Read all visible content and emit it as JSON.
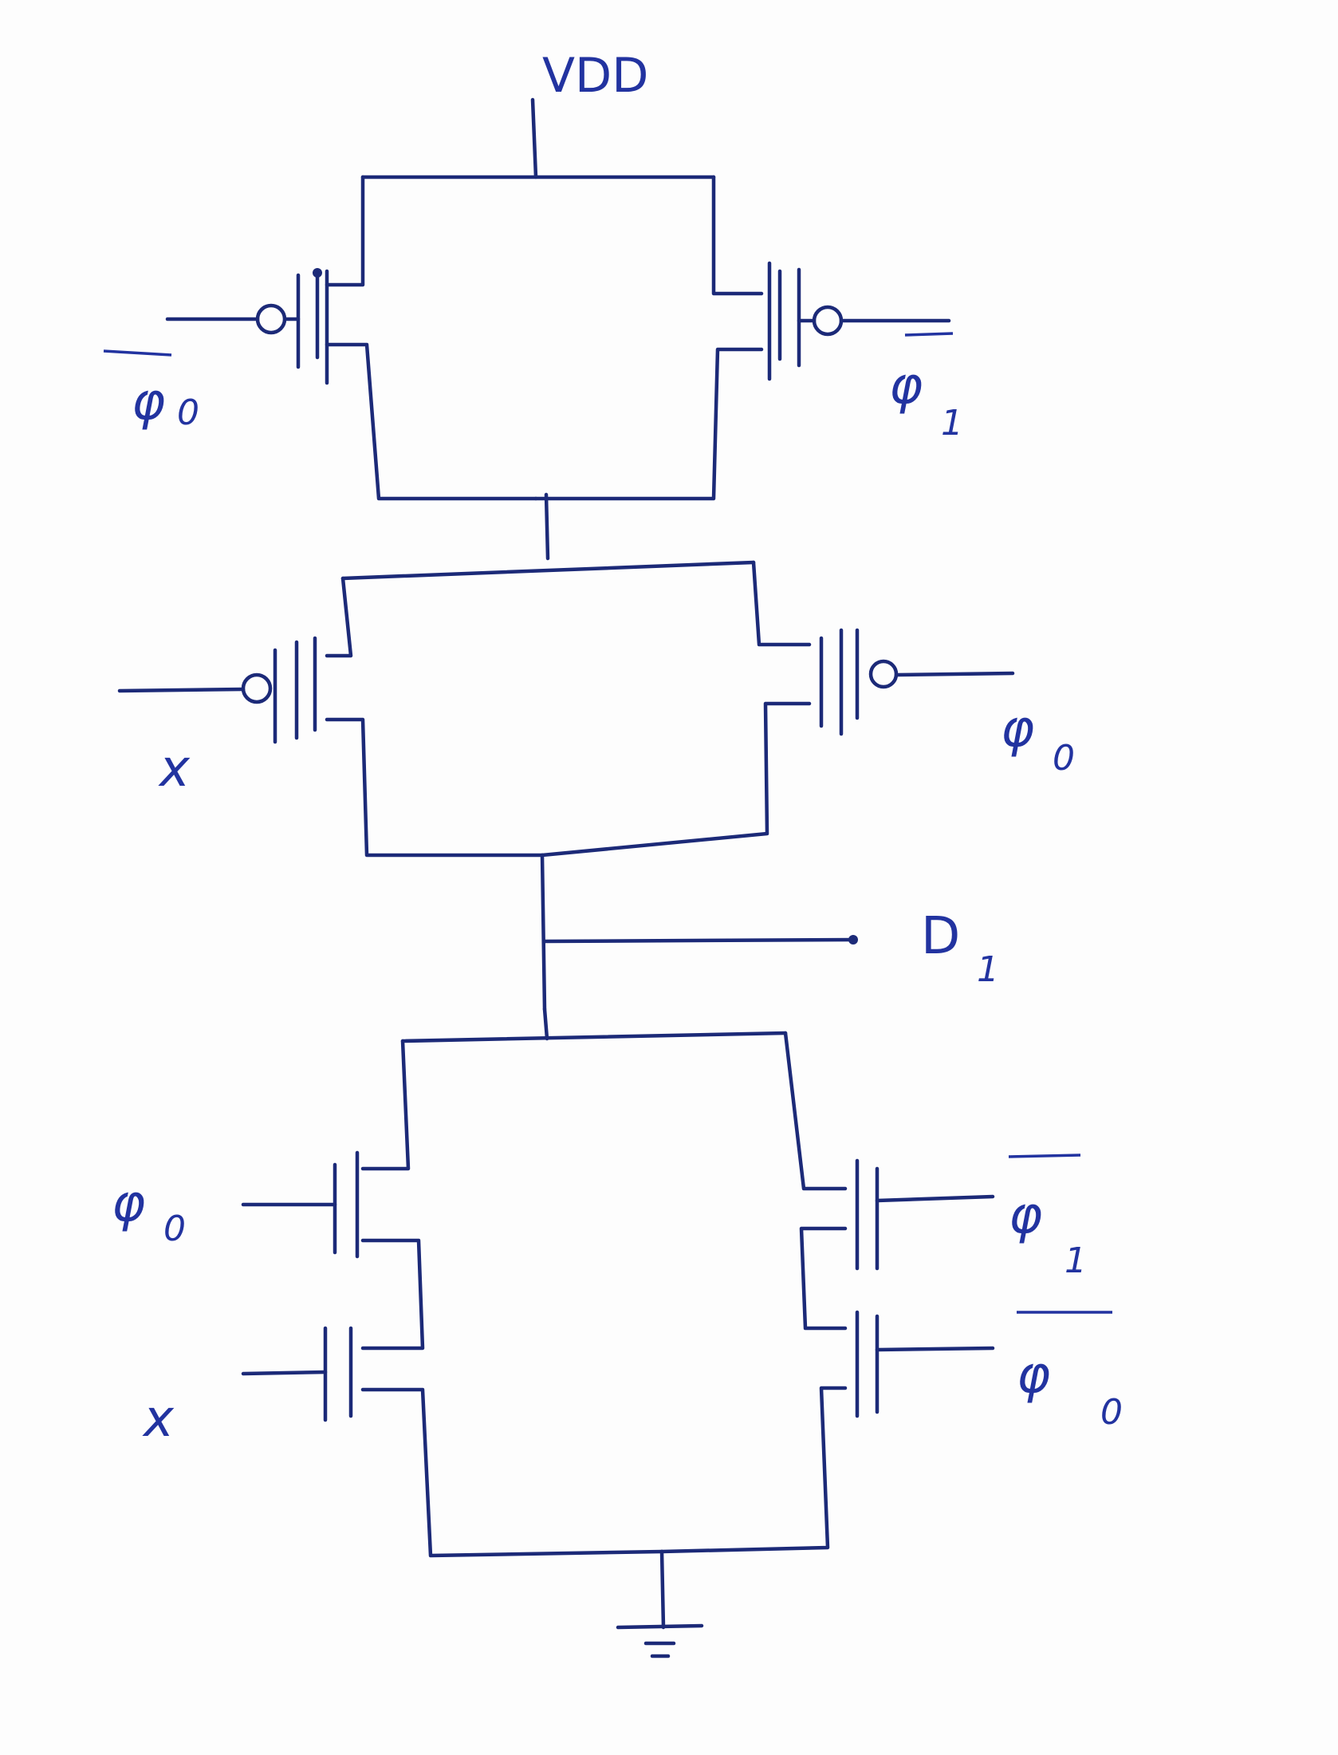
{
  "labels": {
    "vdd": "VDD",
    "pullup_1_left": {
      "sym": "φ",
      "sub": "0",
      "bar": true
    },
    "pullup_1_right": {
      "sym": "φ",
      "sub": "1",
      "bar": true
    },
    "pullup_2_left": {
      "sym": "x",
      "sub": "",
      "bar": false
    },
    "pullup_2_right": {
      "sym": "φ",
      "sub": "0",
      "bar": false
    },
    "output": {
      "sym": "D",
      "sub": "1"
    },
    "pulldown_left_top": {
      "sym": "φ",
      "sub": "0",
      "bar": false
    },
    "pulldown_left_bottom": {
      "sym": "x",
      "sub": "",
      "bar": false
    },
    "pulldown_right_top": {
      "sym": "φ",
      "sub": "1",
      "bar": true
    },
    "pulldown_right_bottom": {
      "sym": "φ",
      "sub": "0",
      "bar": true
    }
  },
  "colors": {
    "ink": "#1c2a78",
    "label": "#2233a0",
    "paper": "#fdfdfd"
  }
}
